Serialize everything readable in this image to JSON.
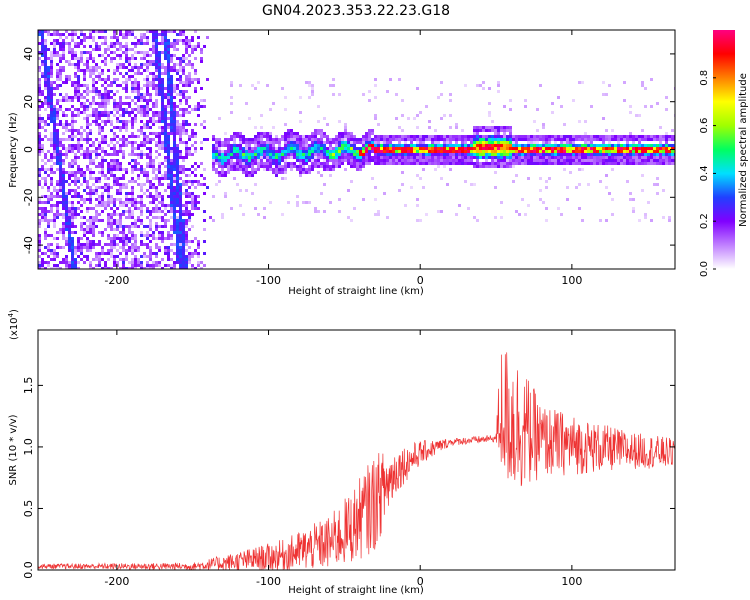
{
  "title": "GN04.2023.353.22.23.G18",
  "chart_data": [
    {
      "type": "heatmap",
      "xlabel": "Height of straight line (km)",
      "ylabel": "Frequency (Hz)",
      "xlim": [
        -252,
        168
      ],
      "ylim": [
        -50,
        50
      ],
      "xticks": [
        -200,
        -100,
        0,
        100
      ],
      "yticks": [
        -40,
        -20,
        0,
        20,
        40
      ],
      "colorbar": {
        "label": "Normalized spectral amplitude",
        "range": [
          0,
          1
        ],
        "ticks": [
          0.0,
          0.2,
          0.4,
          0.6,
          0.8
        ],
        "colormap": [
          "#ffffff",
          "#c080ff",
          "#8000ff",
          "#2040ff",
          "#00e0ff",
          "#00ff60",
          "#a0ff00",
          "#ffff00",
          "#ff8000",
          "#ff0000",
          "#ff0080"
        ]
      },
      "features": {
        "noise_region_x": [
          -252,
          -138
        ],
        "tones_x": [
          -138,
          168
        ],
        "tone_center_freq": 0,
        "sweeping_lines": [
          {
            "x": [
              -250,
              -228
            ],
            "y": [
              50,
              -50
            ]
          },
          {
            "x": [
              -168,
              -155
            ],
            "y": [
              50,
              -50
            ]
          },
          {
            "x": [
              -175,
              -158
            ],
            "y": [
              50,
              -50
            ]
          }
        ]
      }
    },
    {
      "type": "line",
      "xlabel": "Height of straight line (km)",
      "ylabel": "SNR (10 * v/v)",
      "y_multiplier": "(x10",
      "y_multiplier_exp": "4",
      "y_multiplier_close": ")",
      "xlim": [
        -252,
        168
      ],
      "ylim": [
        0,
        1.95
      ],
      "xticks": [
        -200,
        -100,
        0,
        100
      ],
      "yticks": [
        0.0,
        0.5,
        1.0,
        1.5
      ],
      "yticklabels": [
        "0.0",
        "0.5",
        "1.0",
        "1.5"
      ],
      "series": [
        {
          "color": "#ee3333",
          "envelope": [
            {
              "x": -252,
              "y": 0.03,
              "noise": 0.02
            },
            {
              "x": -150,
              "y": 0.03,
              "noise": 0.03
            },
            {
              "x": -120,
              "y": 0.07,
              "noise": 0.08
            },
            {
              "x": -90,
              "y": 0.12,
              "noise": 0.13
            },
            {
              "x": -60,
              "y": 0.22,
              "noise": 0.22
            },
            {
              "x": -45,
              "y": 0.35,
              "noise": 0.3
            },
            {
              "x": -30,
              "y": 0.55,
              "noise": 0.4
            },
            {
              "x": -15,
              "y": 0.82,
              "noise": 0.18
            },
            {
              "x": 0,
              "y": 0.95,
              "noise": 0.1
            },
            {
              "x": 20,
              "y": 1.04,
              "noise": 0.03
            },
            {
              "x": 50,
              "y": 1.07,
              "noise": 0.03
            },
            {
              "x": 53,
              "y": 1.3,
              "noise": 0.55
            },
            {
              "x": 62,
              "y": 1.2,
              "noise": 0.6
            },
            {
              "x": 80,
              "y": 1.05,
              "noise": 0.3
            },
            {
              "x": 110,
              "y": 1.0,
              "noise": 0.22
            },
            {
              "x": 140,
              "y": 0.97,
              "noise": 0.15
            },
            {
              "x": 168,
              "y": 0.95,
              "noise": 0.12
            }
          ]
        }
      ]
    }
  ]
}
